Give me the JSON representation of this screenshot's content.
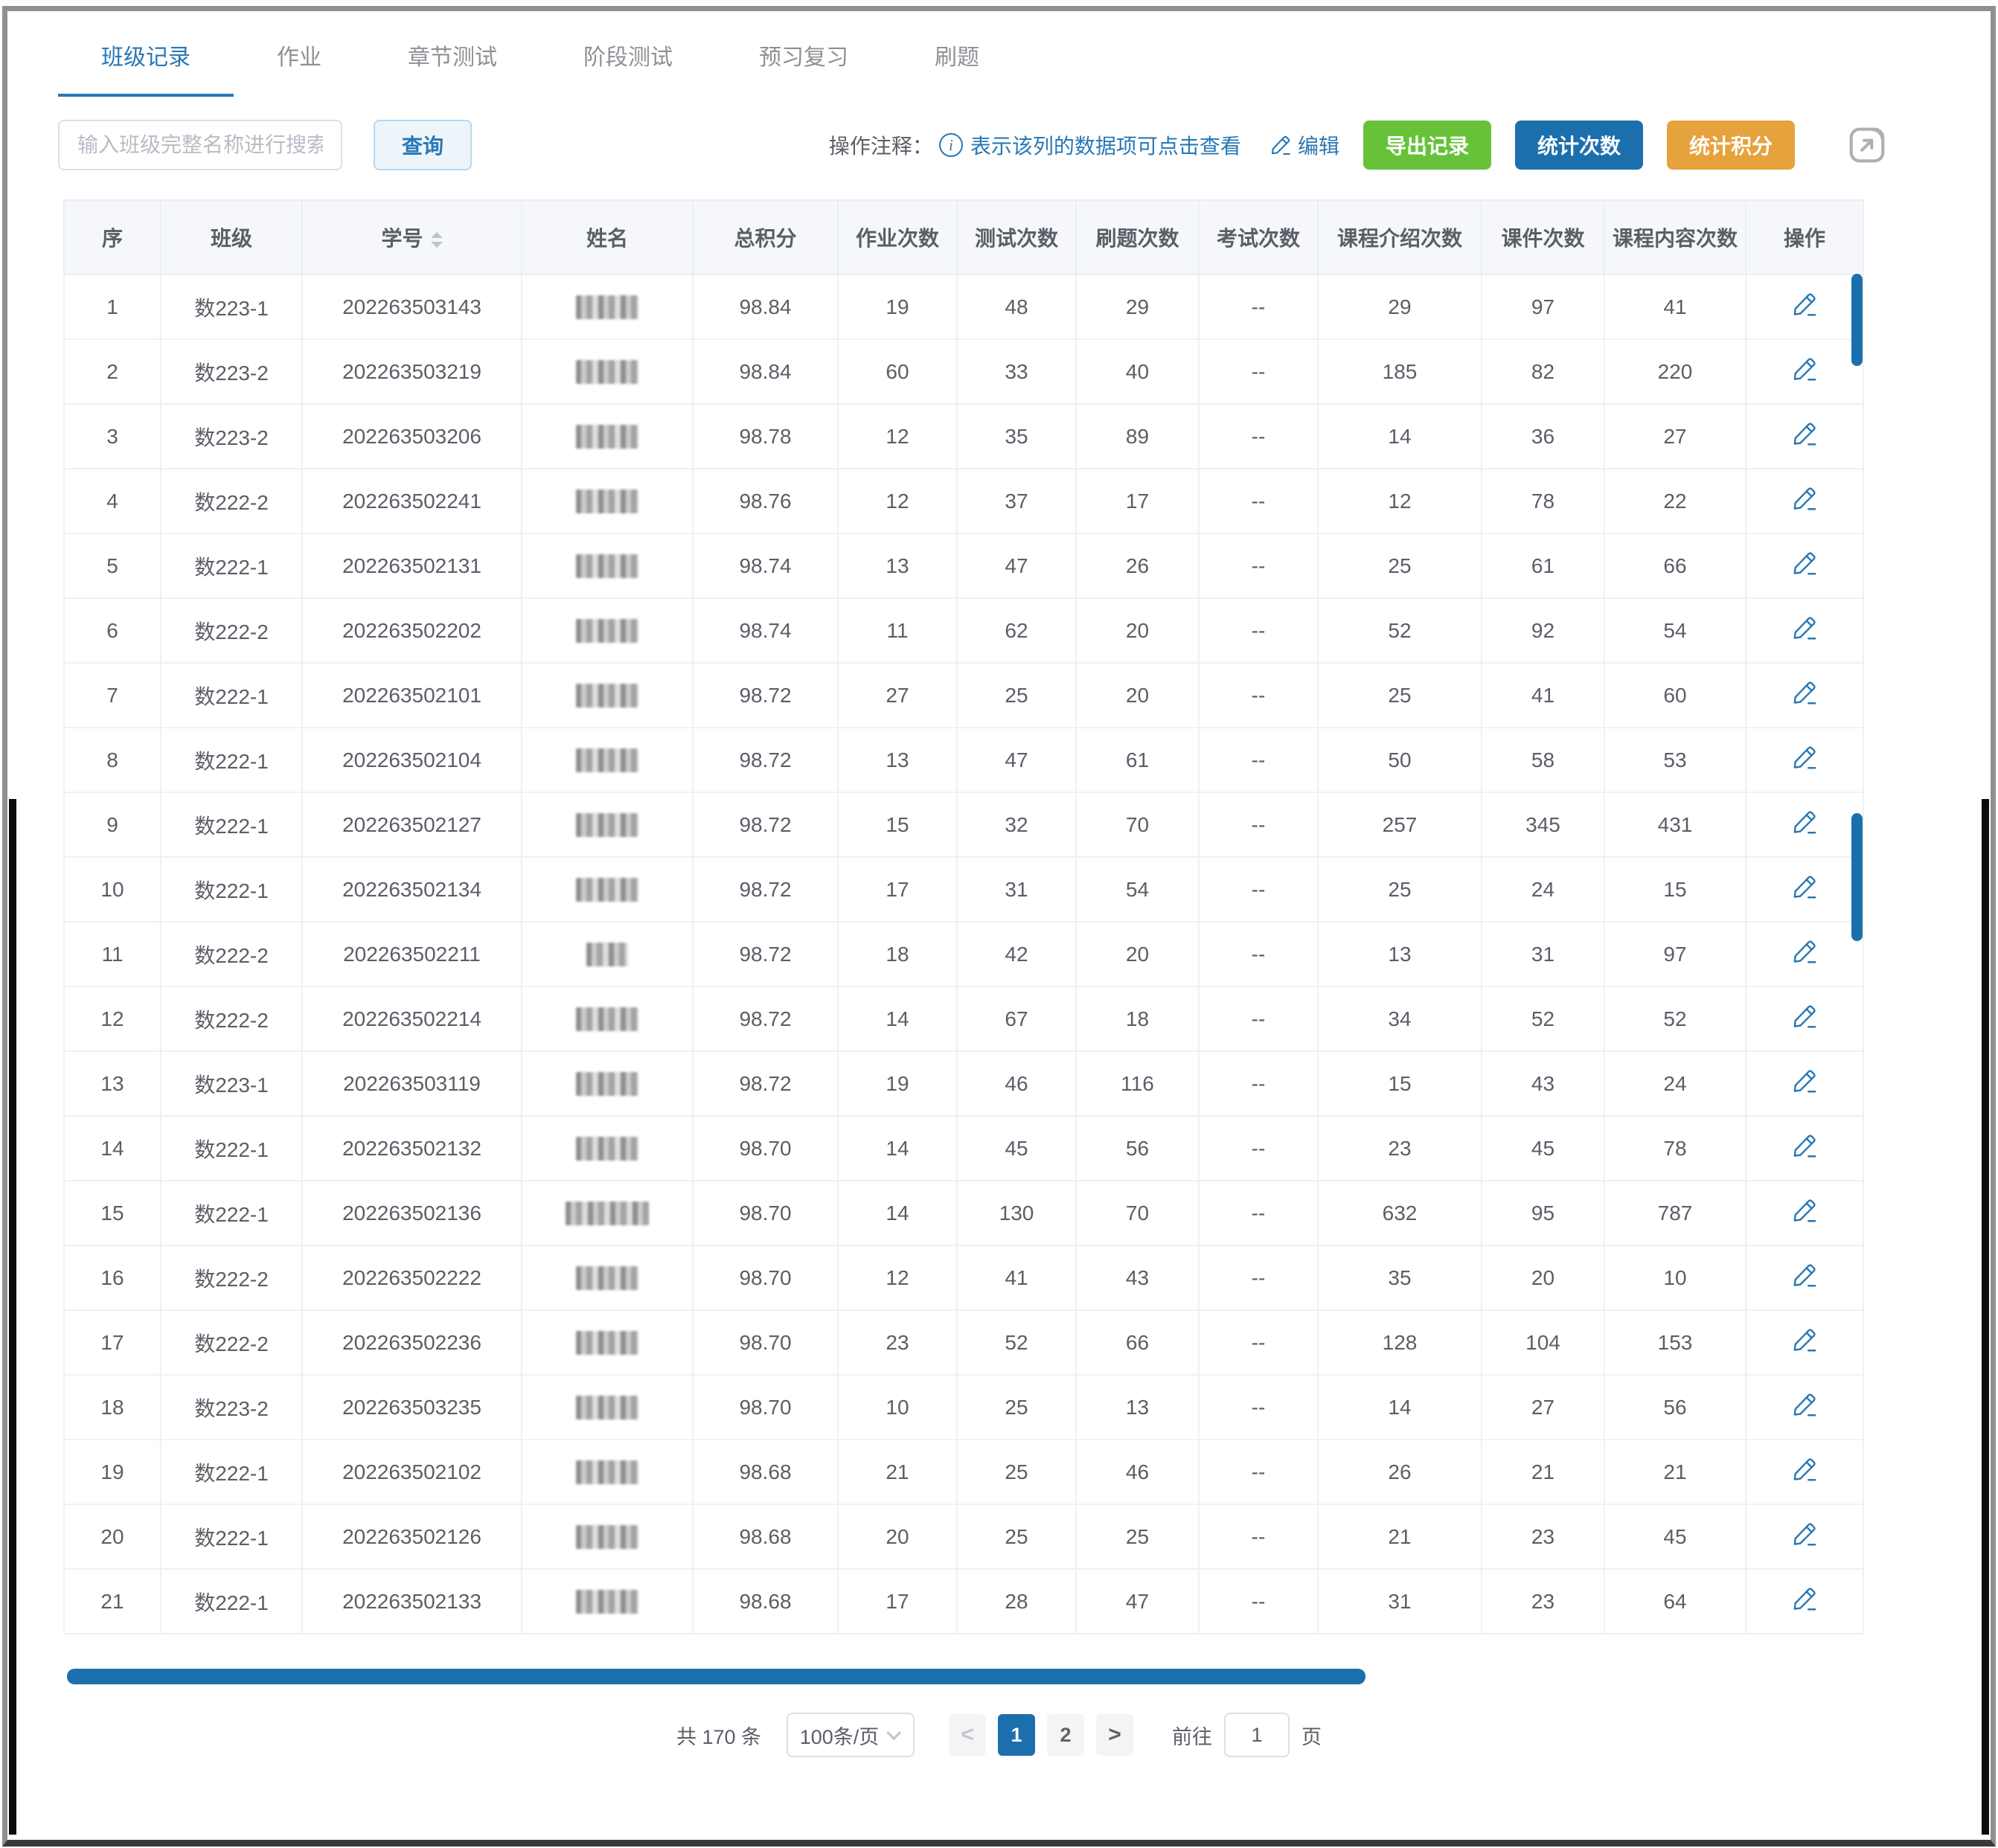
{
  "tabs": [
    {
      "label": "班级记录",
      "active": true
    },
    {
      "label": "作业",
      "active": false
    },
    {
      "label": "章节测试",
      "active": false
    },
    {
      "label": "阶段测试",
      "active": false
    },
    {
      "label": "预习复习",
      "active": false
    },
    {
      "label": "刷题",
      "active": false
    }
  ],
  "toolbar": {
    "search_placeholder": "输入班级完整名称进行搜索",
    "query_label": "查询",
    "note_prefix": "操作注释：",
    "note_text": "表示该列的数据项可点击查看",
    "edit_label": "编辑",
    "export_label": "导出记录",
    "count_label": "统计次数",
    "score_label": "统计积分"
  },
  "icons": {
    "info": "info-circle-icon",
    "edit": "pencil-icon",
    "expand": "open-in-new-window-icon",
    "sort": "sort-carets-icon",
    "select_chevron": "chevron-down-icon"
  },
  "colors": {
    "accent_blue": "#2878b5",
    "button_blue": "#1c6fad",
    "button_green": "#67c23a",
    "button_orange": "#e6a23c",
    "header_bg": "#f5f7fa",
    "scrollbar": "#1c6fad"
  },
  "table": {
    "headers": [
      "序",
      "班级",
      "学号",
      "姓名",
      "总积分",
      "作业次数",
      "测试次数",
      "刷题次数",
      "考试次数",
      "课程介绍次数",
      "课件次数",
      "课程内容次数",
      "操作"
    ],
    "sortable_column": "学号",
    "name_column_redacted": true,
    "rows": [
      {
        "seq": "1",
        "class": "数223-1",
        "student_id": "202263503143",
        "name_chars": 3,
        "score": "98.84",
        "homework": "19",
        "test": "48",
        "drill": "29",
        "exam": "--",
        "intro": "29",
        "courseware": "97",
        "content": "41"
      },
      {
        "seq": "2",
        "class": "数223-2",
        "student_id": "202263503219",
        "name_chars": 3,
        "score": "98.84",
        "homework": "60",
        "test": "33",
        "drill": "40",
        "exam": "--",
        "intro": "185",
        "courseware": "82",
        "content": "220"
      },
      {
        "seq": "3",
        "class": "数223-2",
        "student_id": "202263503206",
        "name_chars": 3,
        "score": "98.78",
        "homework": "12",
        "test": "35",
        "drill": "89",
        "exam": "--",
        "intro": "14",
        "courseware": "36",
        "content": "27"
      },
      {
        "seq": "4",
        "class": "数222-2",
        "student_id": "202263502241",
        "name_chars": 3,
        "score": "98.76",
        "homework": "12",
        "test": "37",
        "drill": "17",
        "exam": "--",
        "intro": "12",
        "courseware": "78",
        "content": "22"
      },
      {
        "seq": "5",
        "class": "数222-1",
        "student_id": "202263502131",
        "name_chars": 3,
        "score": "98.74",
        "homework": "13",
        "test": "47",
        "drill": "26",
        "exam": "--",
        "intro": "25",
        "courseware": "61",
        "content": "66"
      },
      {
        "seq": "6",
        "class": "数222-2",
        "student_id": "202263502202",
        "name_chars": 3,
        "score": "98.74",
        "homework": "11",
        "test": "62",
        "drill": "20",
        "exam": "--",
        "intro": "52",
        "courseware": "92",
        "content": "54"
      },
      {
        "seq": "7",
        "class": "数222-1",
        "student_id": "202263502101",
        "name_chars": 3,
        "score": "98.72",
        "homework": "27",
        "test": "25",
        "drill": "20",
        "exam": "--",
        "intro": "25",
        "courseware": "41",
        "content": "60"
      },
      {
        "seq": "8",
        "class": "数222-1",
        "student_id": "202263502104",
        "name_chars": 3,
        "score": "98.72",
        "homework": "13",
        "test": "47",
        "drill": "61",
        "exam": "--",
        "intro": "50",
        "courseware": "58",
        "content": "53"
      },
      {
        "seq": "9",
        "class": "数222-1",
        "student_id": "202263502127",
        "name_chars": 3,
        "score": "98.72",
        "homework": "15",
        "test": "32",
        "drill": "70",
        "exam": "--",
        "intro": "257",
        "courseware": "345",
        "content": "431"
      },
      {
        "seq": "10",
        "class": "数222-1",
        "student_id": "202263502134",
        "name_chars": 3,
        "score": "98.72",
        "homework": "17",
        "test": "31",
        "drill": "54",
        "exam": "--",
        "intro": "25",
        "courseware": "24",
        "content": "15"
      },
      {
        "seq": "11",
        "class": "数222-2",
        "student_id": "202263502211",
        "name_chars": 2,
        "score": "98.72",
        "homework": "18",
        "test": "42",
        "drill": "20",
        "exam": "--",
        "intro": "13",
        "courseware": "31",
        "content": "97"
      },
      {
        "seq": "12",
        "class": "数222-2",
        "student_id": "202263502214",
        "name_chars": 3,
        "score": "98.72",
        "homework": "14",
        "test": "67",
        "drill": "18",
        "exam": "--",
        "intro": "34",
        "courseware": "52",
        "content": "52"
      },
      {
        "seq": "13",
        "class": "数223-1",
        "student_id": "202263503119",
        "name_chars": 3,
        "score": "98.72",
        "homework": "19",
        "test": "46",
        "drill": "116",
        "exam": "--",
        "intro": "15",
        "courseware": "43",
        "content": "24"
      },
      {
        "seq": "14",
        "class": "数222-1",
        "student_id": "202263502132",
        "name_chars": 3,
        "score": "98.70",
        "homework": "14",
        "test": "45",
        "drill": "56",
        "exam": "--",
        "intro": "23",
        "courseware": "45",
        "content": "78"
      },
      {
        "seq": "15",
        "class": "数222-1",
        "student_id": "202263502136",
        "name_chars": 4,
        "score": "98.70",
        "homework": "14",
        "test": "130",
        "drill": "70",
        "exam": "--",
        "intro": "632",
        "courseware": "95",
        "content": "787"
      },
      {
        "seq": "16",
        "class": "数222-2",
        "student_id": "202263502222",
        "name_chars": 3,
        "score": "98.70",
        "homework": "12",
        "test": "41",
        "drill": "43",
        "exam": "--",
        "intro": "35",
        "courseware": "20",
        "content": "10"
      },
      {
        "seq": "17",
        "class": "数222-2",
        "student_id": "202263502236",
        "name_chars": 3,
        "score": "98.70",
        "homework": "23",
        "test": "52",
        "drill": "66",
        "exam": "--",
        "intro": "128",
        "courseware": "104",
        "content": "153"
      },
      {
        "seq": "18",
        "class": "数223-2",
        "student_id": "202263503235",
        "name_chars": 3,
        "score": "98.70",
        "homework": "10",
        "test": "25",
        "drill": "13",
        "exam": "--",
        "intro": "14",
        "courseware": "27",
        "content": "56"
      },
      {
        "seq": "19",
        "class": "数222-1",
        "student_id": "202263502102",
        "name_chars": 3,
        "score": "98.68",
        "homework": "21",
        "test": "25",
        "drill": "46",
        "exam": "--",
        "intro": "26",
        "courseware": "21",
        "content": "21"
      },
      {
        "seq": "20",
        "class": "数222-1",
        "student_id": "202263502126",
        "name_chars": 3,
        "score": "98.68",
        "homework": "20",
        "test": "25",
        "drill": "25",
        "exam": "--",
        "intro": "21",
        "courseware": "23",
        "content": "45"
      },
      {
        "seq": "21",
        "class": "数222-1",
        "student_id": "202263502133",
        "name_chars": 3,
        "score": "98.68",
        "homework": "17",
        "test": "28",
        "drill": "47",
        "exam": "--",
        "intro": "31",
        "courseware": "23",
        "content": "64"
      }
    ]
  },
  "pagination": {
    "total": "共 170 条",
    "page_size": "100条/页",
    "prev": "<",
    "next": ">",
    "pages": [
      "1",
      "2"
    ],
    "active_page": "1",
    "goto_label": "前往",
    "goto_value": "1",
    "goto_suffix": "页"
  }
}
